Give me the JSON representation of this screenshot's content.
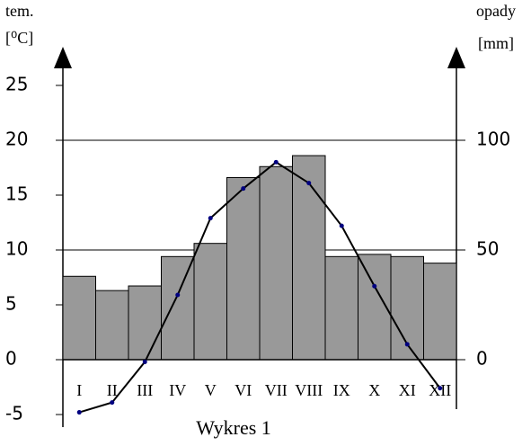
{
  "chart_data": {
    "type": "climatogram",
    "title": "Wykres 1",
    "y_label": "tem.",
    "y_unit": "[⁰C]",
    "y2_label": "opady",
    "y2_unit": "[mm]",
    "categories": [
      "I",
      "II",
      "III",
      "IV",
      "V",
      "VI",
      "VII",
      "VIII",
      "IX",
      "X",
      "XI",
      "XII"
    ],
    "series": [
      {
        "name": "opady",
        "type": "bar",
        "axis": "y2",
        "color": "#999999",
        "values": [
          38,
          31.5,
          33.6,
          47,
          53,
          83,
          88,
          93,
          47,
          48,
          47,
          44
        ]
      },
      {
        "name": "tem.",
        "type": "line",
        "axis": "y",
        "color": "#000000",
        "values": [
          -4.8,
          -3.9,
          -0.2,
          5.9,
          12.9,
          15.6,
          18,
          16.1,
          12.2,
          6.7,
          1.4,
          -2.6
        ]
      }
    ],
    "ylim": [
      -5,
      25
    ],
    "yticks": [
      -5,
      0,
      5,
      10,
      15,
      20,
      25
    ],
    "y2lim": [
      -25,
      125
    ],
    "y2ticks": [
      0,
      50,
      100
    ],
    "grid": true
  }
}
